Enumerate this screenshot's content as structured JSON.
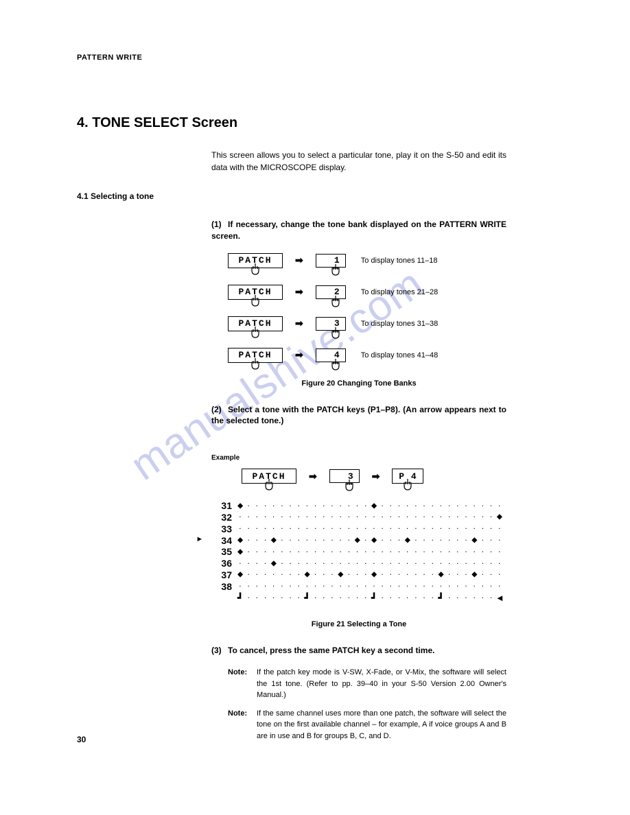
{
  "header": "PATTERN WRITE",
  "section_title": "4. TONE SELECT Screen",
  "intro": "This screen allows you to select a particular tone, play it on the S-50 and edit its data with the MICROSCOPE display.",
  "subsection": "4.1   Selecting a tone",
  "step1": {
    "num": "(1)",
    "text": "If necessary, change the tone bank displayed on the PATTERN WRITE screen."
  },
  "bank_rows": [
    {
      "key1": "PATCH",
      "key2": "1",
      "label": "To display tones 11–18"
    },
    {
      "key1": "PATCH",
      "key2": "2",
      "label": "To display tones 21–28"
    },
    {
      "key1": "PATCH",
      "key2": "3",
      "label": "To display tones 31–38"
    },
    {
      "key1": "PATCH",
      "key2": "4",
      "label": "To display tones 41–48"
    }
  ],
  "fig20": "Figure 20   Changing Tone Banks",
  "step2": {
    "num": "(2)",
    "text": "Select a tone with the PATCH keys (P1–P8). (An arrow appears next to the selected tone.)"
  },
  "example_label": "Example",
  "example_keys": {
    "k1": "PATCH",
    "k2": "3",
    "k3": "P 4"
  },
  "grid": {
    "labels": [
      "31",
      "32",
      "33",
      "34",
      "35",
      "36",
      "37",
      "38"
    ],
    "selected_index": 3,
    "rows": [
      [
        1,
        0,
        0,
        0,
        0,
        0,
        0,
        0,
        0,
        0,
        0,
        0,
        0,
        0,
        0,
        0,
        1,
        0,
        0,
        0,
        0,
        0,
        0,
        0,
        0,
        0,
        0,
        0,
        0,
        0,
        0,
        0
      ],
      [
        0,
        0,
        0,
        0,
        0,
        0,
        0,
        0,
        0,
        0,
        0,
        0,
        0,
        0,
        0,
        0,
        0,
        0,
        0,
        0,
        0,
        0,
        0,
        0,
        0,
        0,
        0,
        0,
        0,
        0,
        0,
        1
      ],
      [
        0,
        0,
        0,
        0,
        0,
        0,
        0,
        0,
        0,
        0,
        0,
        0,
        0,
        0,
        0,
        0,
        0,
        0,
        0,
        0,
        0,
        0,
        0,
        0,
        0,
        0,
        0,
        0,
        0,
        0,
        0,
        0
      ],
      [
        1,
        0,
        0,
        0,
        1,
        0,
        0,
        0,
        0,
        0,
        0,
        0,
        0,
        0,
        1,
        0,
        1,
        0,
        0,
        0,
        1,
        0,
        0,
        0,
        0,
        0,
        0,
        0,
        1,
        0,
        0,
        0
      ],
      [
        1,
        0,
        0,
        0,
        0,
        0,
        0,
        0,
        0,
        0,
        0,
        0,
        0,
        0,
        0,
        0,
        0,
        0,
        0,
        0,
        0,
        0,
        0,
        0,
        0,
        0,
        0,
        0,
        0,
        0,
        0,
        0
      ],
      [
        0,
        0,
        0,
        0,
        1,
        0,
        0,
        0,
        0,
        0,
        0,
        0,
        0,
        0,
        0,
        0,
        0,
        0,
        0,
        0,
        0,
        0,
        0,
        0,
        0,
        0,
        0,
        0,
        0,
        0,
        0,
        0
      ],
      [
        1,
        0,
        0,
        0,
        0,
        0,
        0,
        0,
        1,
        0,
        0,
        0,
        1,
        0,
        0,
        0,
        1,
        0,
        0,
        0,
        0,
        0,
        0,
        0,
        1,
        0,
        0,
        0,
        1,
        0,
        0,
        0
      ],
      [
        0,
        0,
        0,
        0,
        0,
        0,
        0,
        0,
        0,
        0,
        0,
        0,
        0,
        0,
        0,
        0,
        0,
        0,
        0,
        0,
        0,
        0,
        0,
        0,
        0,
        0,
        0,
        0,
        0,
        0,
        0,
        0
      ]
    ],
    "beats": [
      "┛",
      "",
      "",
      "",
      "",
      "",
      "",
      "",
      "┛",
      "",
      "",
      "",
      "",
      "",
      "",
      "",
      "┛",
      "",
      "",
      "",
      "",
      "",
      "",
      "",
      "┛",
      "",
      "",
      "",
      "",
      "",
      "",
      "◄"
    ]
  },
  "fig21": "Figure 21   Selecting a Tone",
  "step3": {
    "num": "(3)",
    "text": "To cancel, press the same PATCH key a second time."
  },
  "note1": {
    "label": "Note:",
    "text": "If the patch key mode is V-SW, X-Fade, or V-Mix, the software will select the 1st tone.  (Refer to pp. 39–40 in your S-50 Version 2.00 Owner's Manual.)"
  },
  "note2": {
    "label": "Note:",
    "text": "If the same channel uses more than one patch, the software will select the tone on the first available channel – for example, A if voice groups A and B are in use and B for groups B, C, and D."
  },
  "page_num": "30",
  "watermark": "manualshive.com",
  "arrow_glyph": "➡",
  "diamond_glyph": "◆",
  "dot_glyph": "·",
  "sel_arrow_glyph": "►"
}
